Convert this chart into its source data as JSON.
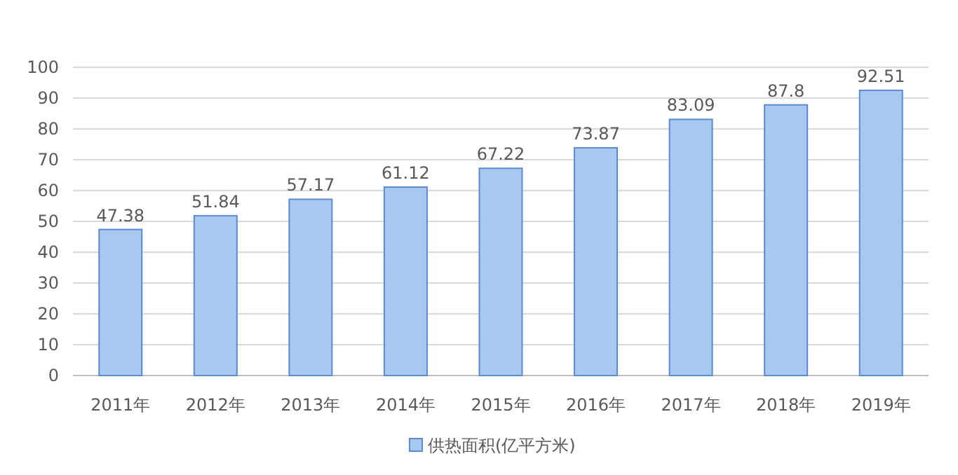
{
  "chart_data": {
    "type": "bar",
    "categories": [
      "2011年",
      "2012年",
      "2013年",
      "2014年",
      "2015年",
      "2016年",
      "2017年",
      "2018年",
      "2019年"
    ],
    "series": [
      {
        "name": "供热面积(亿平方米)",
        "color": "#a9c8f0",
        "values": [
          47.38,
          51.84,
          57.17,
          61.12,
          67.22,
          73.87,
          83.09,
          87.8,
          92.51
        ]
      }
    ],
    "ylim": [
      0,
      100
    ],
    "yticks": [
      0,
      10,
      20,
      30,
      40,
      50,
      60,
      70,
      80,
      90,
      100
    ],
    "grid": "y",
    "legend": "bottom",
    "data_labels": true
  }
}
